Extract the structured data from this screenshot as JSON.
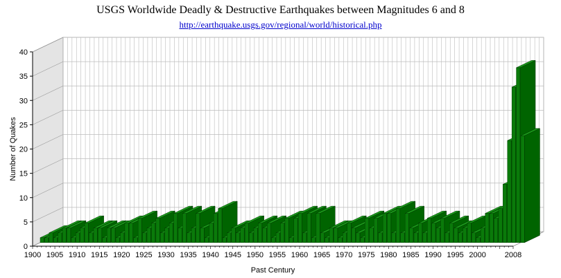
{
  "chart_data": {
    "type": "bar",
    "title": "USGS Worldwide Deadly & Destructive Earthquakes between Magnitudes 6 and 8",
    "subtitle": "http://earthquake.usgs.gov/regional/world/historical.php",
    "xlabel": "Past Century",
    "ylabel": "Number of Quakes",
    "ylim": [
      0,
      40
    ],
    "yticks": [
      0,
      5,
      10,
      15,
      20,
      25,
      30,
      35,
      40
    ],
    "xtick_labels": [
      "1900",
      "1905",
      "1910",
      "1915",
      "1920",
      "1925",
      "1930",
      "1935",
      "1940",
      "1945",
      "1950",
      "1955",
      "1960",
      "1965",
      "1970",
      "1975",
      "1980",
      "1985",
      "1990",
      "1995",
      "2000",
      "2008"
    ],
    "categories": [
      1900,
      1901,
      1902,
      1903,
      1904,
      1905,
      1906,
      1907,
      1908,
      1909,
      1910,
      1911,
      1912,
      1913,
      1914,
      1915,
      1916,
      1917,
      1918,
      1919,
      1920,
      1921,
      1922,
      1923,
      1924,
      1925,
      1926,
      1927,
      1928,
      1929,
      1930,
      1931,
      1932,
      1933,
      1934,
      1935,
      1936,
      1937,
      1938,
      1939,
      1940,
      1941,
      1942,
      1943,
      1944,
      1945,
      1946,
      1947,
      1948,
      1949,
      1950,
      1951,
      1952,
      1953,
      1954,
      1955,
      1956,
      1957,
      1958,
      1959,
      1960,
      1961,
      1962,
      1963,
      1964,
      1965,
      1966,
      1967,
      1968,
      1969,
      1970,
      1971,
      1972,
      1973,
      1974,
      1975,
      1976,
      1977,
      1978,
      1979,
      1980,
      1981,
      1982,
      1983,
      1984,
      1985,
      1986,
      1987,
      1988,
      1989,
      1990,
      1991,
      1992,
      1993,
      1994,
      1995,
      1996,
      1997,
      1998,
      1999,
      2000,
      2001,
      2002,
      2003,
      2004,
      2005,
      2006,
      2007,
      2008
    ],
    "values": [
      1,
      1,
      2,
      1,
      2,
      3,
      3,
      1,
      2,
      3,
      4,
      2,
      3,
      3,
      1,
      3,
      3,
      1,
      2,
      4,
      4,
      1,
      5,
      2,
      3,
      4,
      5,
      2,
      3,
      4,
      6,
      3,
      6,
      2,
      3,
      6,
      3,
      1,
      4,
      6,
      7,
      1,
      2,
      3,
      2,
      3,
      4,
      2,
      3,
      4,
      3,
      4,
      1,
      2,
      4,
      5,
      1,
      5,
      6,
      2,
      6,
      1,
      6,
      2,
      1,
      3,
      3,
      1,
      2,
      4,
      3,
      2,
      1,
      5,
      3,
      5,
      2,
      6,
      6,
      2,
      7,
      2,
      6,
      3,
      2,
      4,
      2,
      5,
      4,
      3,
      5,
      2,
      4,
      3,
      2,
      3,
      4,
      2,
      1,
      3,
      6,
      6,
      5,
      7,
      12,
      21,
      32,
      36,
      22
    ],
    "bar_color": "#006400",
    "wall_color": "#e4e4e4",
    "grid": true
  }
}
